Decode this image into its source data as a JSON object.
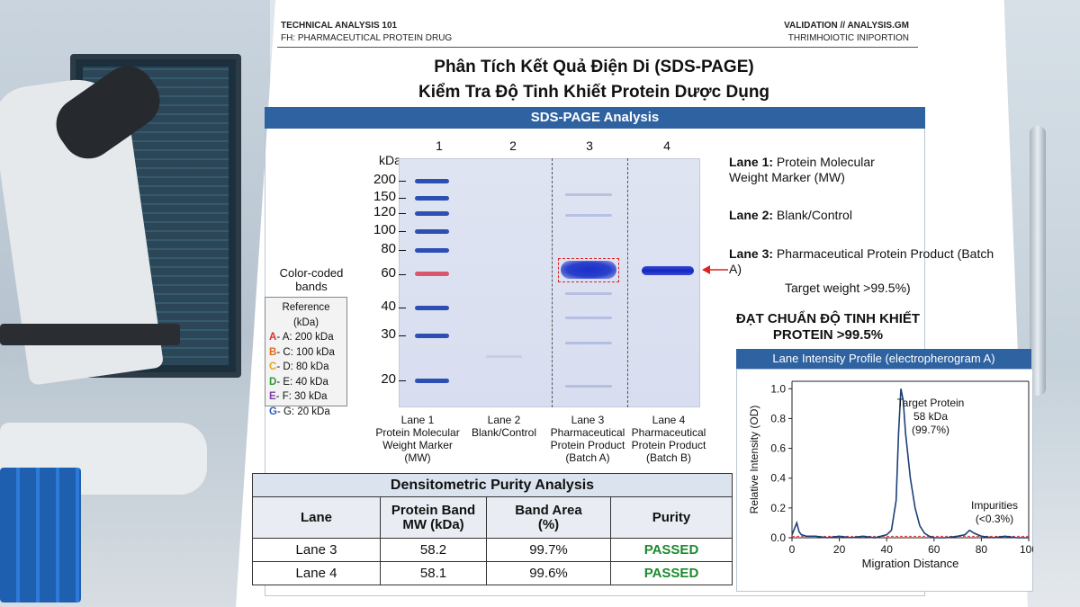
{
  "header": {
    "left_line1": "TECHNICAL ANALYSIS 101",
    "left_line2": "FH: PHARMACEUTICAL PROTEIN DRUG",
    "right_line1": "VALIDATION // ANALYSIS.GM",
    "right_line2": "THRIMHOIOTIC INIPORTION"
  },
  "title_line1": "Phân Tích Kết Quả Điện Di (SDS-PAGE)",
  "title_line2": "Kiểm Tra Độ Tinh Khiết Protein Dược Dụng",
  "section_banner": "SDS-PAGE Analysis",
  "gel": {
    "unit_label": "kDa",
    "lane_numbers": [
      "1",
      "2",
      "3",
      "4"
    ],
    "mw_markers": [
      "200",
      "150",
      "120",
      "100",
      "80",
      "60",
      "40",
      "30",
      "20"
    ],
    "lane_captions": [
      "Lane 1\nProtein Molecular\nWeight Marker\n(MW)",
      "Lane 2\nBlank/Control",
      "Lane 3\nPharmaceutical\nProtein Product\n(Batch A)",
      "Lane 4\nPharmaceutical\nProtein Product\n(Batch B)"
    ]
  },
  "legend": {
    "title": "Color-coded\nbands",
    "header": "Reference (kDa)",
    "items": [
      {
        "key": "A",
        "text": "- A: 200 kDa",
        "color": "#d0312d"
      },
      {
        "key": "B",
        "text": "- C: 100 kDa",
        "color": "#e06a1b"
      },
      {
        "key": "C",
        "text": "- D: 80 kDa",
        "color": "#e2a81a"
      },
      {
        "key": "D",
        "text": "- E: 40 kDa",
        "color": "#2f9a3a"
      },
      {
        "key": "E",
        "text": "- F: 30 kDa",
        "color": "#7a3fa8"
      },
      {
        "key": "G",
        "text": "- G: 20 kDa",
        "color": "#2f5fc0"
      }
    ]
  },
  "lane_descriptions": [
    {
      "label": "Lane 1:",
      "text": " Protein Molecular Weight Marker (MW)"
    },
    {
      "label": "Lane 2:",
      "text": " Blank/Control"
    },
    {
      "label": "Lane 3:",
      "text": " Pharmaceutical Protein Product (Batch A)"
    }
  ],
  "target_weight": "Target weight >99.5%)",
  "pass_statement": "ĐẠT CHUẨN ĐỘ TINH KHIẾT PROTEIN >99.5%",
  "profile": {
    "title": "Lane Intensity Profile (electropherogram A)",
    "ylabel": "Relative Intensity (OD)",
    "xlabel": "Migration Distance",
    "yticks": [
      "0.0",
      "0.2",
      "0.4",
      "0.6",
      "0.8",
      "1.0"
    ],
    "xticks": [
      "0",
      "20",
      "40",
      "60",
      "80",
      "100"
    ],
    "peak_label": "Target Protein\n58 kDa\n(99.7%)",
    "impurity_label": "Impurities\n(<0.3%)"
  },
  "chart_data": {
    "type": "line",
    "title": "Lane Intensity Profile (electropherogram A)",
    "xlabel": "Migration Distance",
    "ylabel": "Relative Intensity (OD)",
    "xlim": [
      0,
      100
    ],
    "ylim": [
      0,
      1.05
    ],
    "series": [
      {
        "x": [
          0,
          2,
          3,
          4,
          6,
          10,
          15,
          20,
          25,
          30,
          35,
          40,
          42,
          44,
          45,
          46,
          47,
          48,
          50,
          52,
          54,
          56,
          58,
          60,
          65,
          70,
          73,
          75,
          77,
          80,
          85,
          90,
          95,
          100
        ],
        "values": [
          0.02,
          0.1,
          0.04,
          0.02,
          0.01,
          0.01,
          0.0,
          0.01,
          0.0,
          0.01,
          0.0,
          0.02,
          0.05,
          0.25,
          0.7,
          1.0,
          0.92,
          0.7,
          0.4,
          0.2,
          0.08,
          0.03,
          0.01,
          0.0,
          0.0,
          0.01,
          0.02,
          0.05,
          0.03,
          0.01,
          0.0,
          0.01,
          0.0,
          0.0
        ]
      }
    ]
  },
  "purity_table": {
    "title": "Densitometric Purity Analysis",
    "headers": [
      "Lane",
      "Protein Band\nMW (kDa)",
      "Band Area\n(%)",
      "Purity"
    ],
    "rows": [
      [
        "Lane 3",
        "58.2",
        "99.7%",
        "PASSED"
      ],
      [
        "Lane 4",
        "58.1",
        "99.6%",
        "PASSED"
      ]
    ]
  }
}
